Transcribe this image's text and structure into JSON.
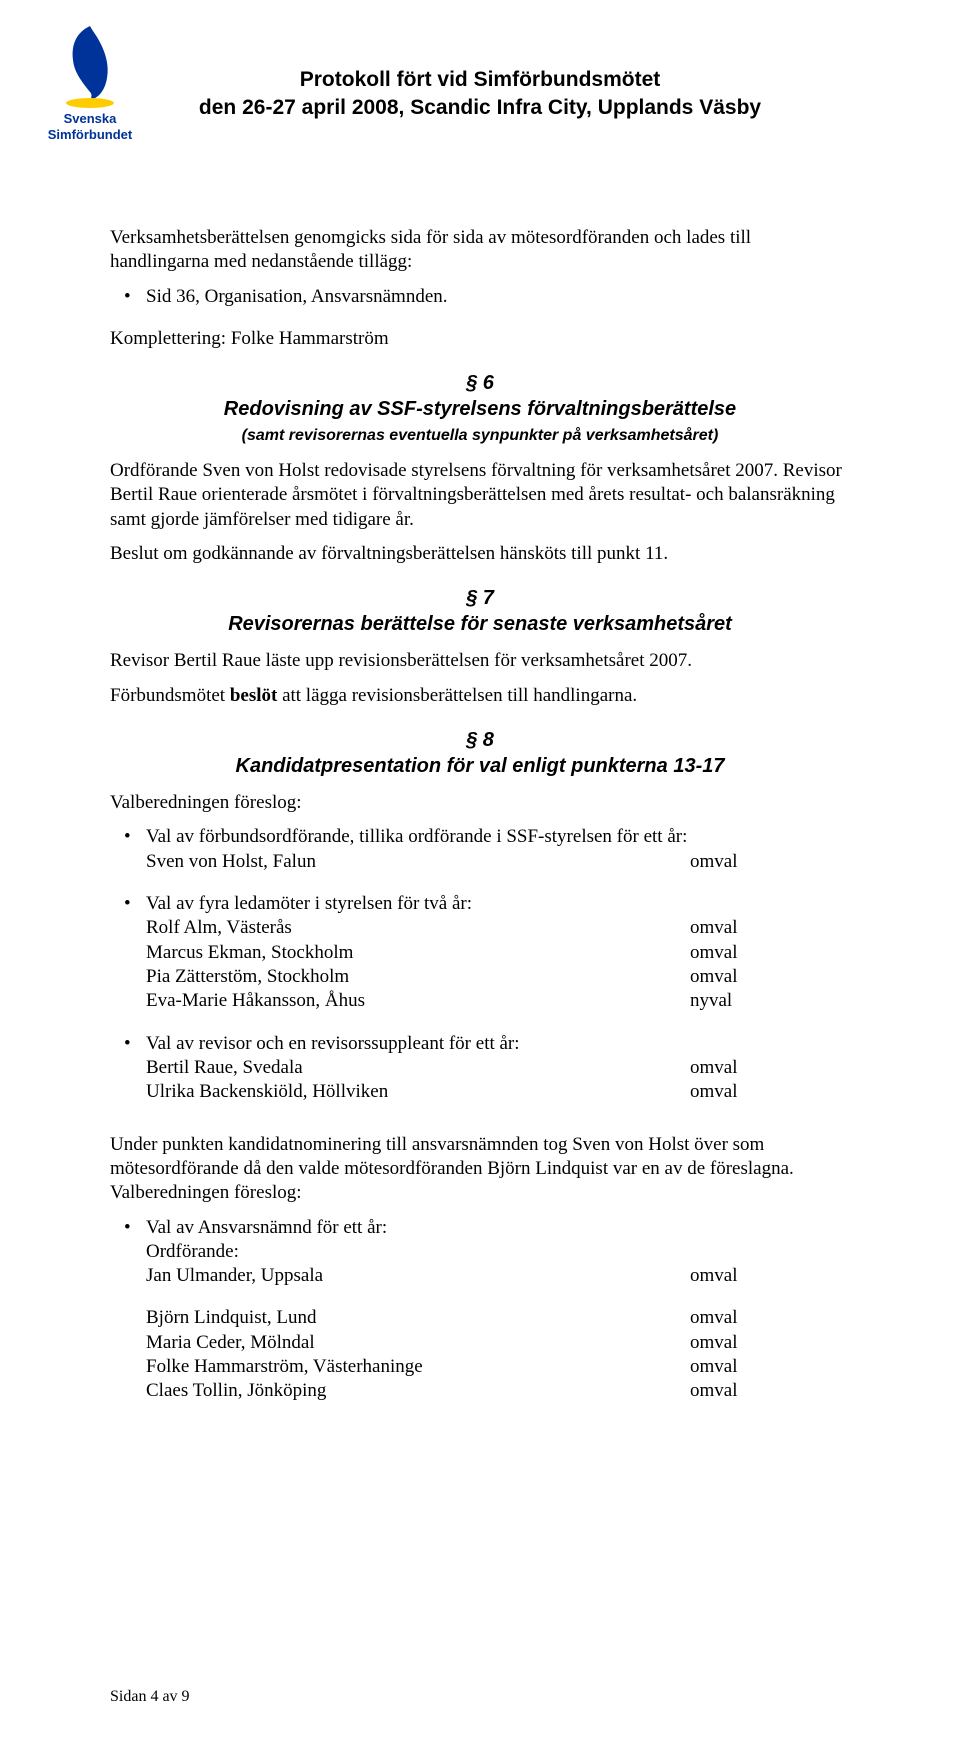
{
  "colors": {
    "text": "#000000",
    "logo_blue": "#003399",
    "logo_yellow": "#ffcc00",
    "background": "#ffffff"
  },
  "typography": {
    "body_family": "Times New Roman",
    "heading_family": "Arial",
    "body_size_pt": 14,
    "heading_size_pt": 15
  },
  "header": {
    "logo_text_line1": "Svenska",
    "logo_text_line2": "Simförbundet",
    "title_line1": "Protokoll fört vid Simförbundsmötet",
    "title_line2": "den 26-27 april 2008, Scandic Infra City, Upplands Väsby"
  },
  "intro": {
    "para1": "Verksamhetsberättelsen genomgicks sida för sida av mötesordföranden och lades till handlingarna med nedanstående tillägg:",
    "bullet1": "Sid 36, Organisation, Ansvarsnämnden.",
    "para2": "Komplettering: Folke Hammarström"
  },
  "s6": {
    "num": "§ 6",
    "title": "Redovisning av SSF-styrelsens förvaltningsberättelse",
    "sub": "(samt revisorernas eventuella synpunkter på verksamhetsåret)",
    "para1": "Ordförande Sven von Holst redovisade styrelsens förvaltning för verksamhetsåret 2007. Revisor Bertil Raue orienterade årsmötet i förvaltningsberättelsen med årets resultat- och balansräkning samt gjorde jämförelser med tidigare år.",
    "para2": "Beslut om godkännande av förvaltningsberättelsen hänsköts till punkt 11."
  },
  "s7": {
    "num": "§ 7",
    "title": "Revisorernas berättelse för senaste verksamhetsåret",
    "para1": "Revisor Bertil Raue läste upp revisionsberättelsen för verksamhetsåret 2007.",
    "para2a": "Förbundsmötet ",
    "para2b": "beslöt",
    "para2c": " att lägga revisionsberättelsen till handlingarna."
  },
  "s8": {
    "num": "§ 8",
    "title": "Kandidatpresentation för val enligt punkterna 13-17",
    "intro": "Valberedningen föreslog:",
    "group1": {
      "heading": "Val av förbundsordförande, tillika ordförande i SSF-styrelsen för ett år:",
      "rows": [
        {
          "name": "Sven von Holst, Falun",
          "status": "omval"
        }
      ]
    },
    "group2": {
      "heading": "Val av fyra ledamöter i styrelsen för två år:",
      "rows": [
        {
          "name": "Rolf Alm, Västerås",
          "status": "omval"
        },
        {
          "name": "Marcus Ekman, Stockholm",
          "status": "omval"
        },
        {
          "name": "Pia Zätterstöm, Stockholm",
          "status": "omval"
        },
        {
          "name": "Eva-Marie Håkansson, Åhus",
          "status": "nyval"
        }
      ]
    },
    "group3": {
      "heading": "Val av revisor och en revisorssuppleant för ett år:",
      "rows": [
        {
          "name": "Bertil Raue, Svedala",
          "status": "omval"
        },
        {
          "name": "Ulrika Backenskiöld, Höllviken",
          "status": "omval"
        }
      ]
    },
    "mid_para": "Under punkten kandidatnominering till ansvarsnämnden tog Sven von Holst över som mötesordförande då den valde mötesordföranden Björn Lindquist var en av de föreslagna. Valberedningen föreslog:",
    "group4": {
      "heading": "Val av Ansvarsnämnd för ett år:",
      "sub": "Ordförande:",
      "rows_a": [
        {
          "name": "Jan Ulmander, Uppsala",
          "status": "omval"
        }
      ],
      "rows_b": [
        {
          "name": "Björn Lindquist, Lund",
          "status": "omval"
        },
        {
          "name": "Maria Ceder, Mölndal",
          "status": "omval"
        },
        {
          "name": "Folke Hammarström, Västerhaninge",
          "status": "omval"
        },
        {
          "name": "Claes Tollin, Jönköping",
          "status": "omval"
        }
      ]
    }
  },
  "footer": "Sidan 4 av 9"
}
